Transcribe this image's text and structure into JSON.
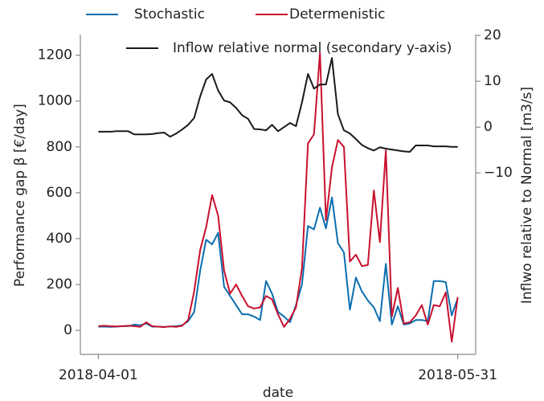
{
  "chart_data": {
    "type": "line",
    "xlabel": "date",
    "ylabel": "Performance gap β [€/day]",
    "y2label": "Inflwo relative to Normal [m3/s]",
    "x": [
      "2018-04-01",
      "2018-04-02",
      "2018-04-03",
      "2018-04-04",
      "2018-04-05",
      "2018-04-06",
      "2018-04-07",
      "2018-04-08",
      "2018-04-09",
      "2018-04-10",
      "2018-04-11",
      "2018-04-12",
      "2018-04-13",
      "2018-04-14",
      "2018-04-15",
      "2018-04-16",
      "2018-04-17",
      "2018-04-18",
      "2018-04-19",
      "2018-04-20",
      "2018-04-21",
      "2018-04-22",
      "2018-04-23",
      "2018-04-24",
      "2018-04-25",
      "2018-04-26",
      "2018-04-27",
      "2018-04-28",
      "2018-04-29",
      "2018-04-30",
      "2018-05-01",
      "2018-05-02",
      "2018-05-03",
      "2018-05-04",
      "2018-05-05",
      "2018-05-06",
      "2018-05-07",
      "2018-05-08",
      "2018-05-09",
      "2018-05-10",
      "2018-05-11",
      "2018-05-12",
      "2018-05-13",
      "2018-05-14",
      "2018-05-15",
      "2018-05-16",
      "2018-05-17",
      "2018-05-18",
      "2018-05-19",
      "2018-05-20",
      "2018-05-21",
      "2018-05-22",
      "2018-05-23",
      "2018-05-24",
      "2018-05-25",
      "2018-05-26",
      "2018-05-27",
      "2018-05-28",
      "2018-05-29",
      "2018-05-30",
      "2018-05-31"
    ],
    "xlim": [
      "2018-03-29",
      "2018-06-03"
    ],
    "xticks": [
      "2018-04-01",
      "2018-05-31"
    ],
    "ylim": [
      -105,
      1290
    ],
    "yticks": [
      0,
      200,
      400,
      600,
      800,
      1000,
      1200
    ],
    "y2lim": [
      -49.6,
      20.2
    ],
    "y2ticks": [
      {
        "value": -10,
        "label": "−10"
      },
      0,
      10,
      20
    ],
    "series": [
      {
        "name": "Stochastic",
        "color": "#0a6eb0",
        "values": [
          16,
          16,
          15,
          16,
          18,
          18,
          25,
          22,
          30,
          16,
          16,
          15,
          17,
          18,
          22,
          40,
          80,
          260,
          395,
          375,
          425,
          190,
          150,
          110,
          70,
          70,
          60,
          45,
          215,
          160,
          80,
          60,
          35,
          110,
          200,
          455,
          440,
          535,
          445,
          580,
          380,
          340,
          90,
          230,
          170,
          130,
          100,
          40,
          290,
          25,
          105,
          25,
          30,
          45,
          45,
          40,
          215,
          215,
          210,
          65,
          140
        ]
      },
      {
        "name": "Determenistic",
        "color": "#c8102e",
        "values": [
          18,
          20,
          18,
          17,
          18,
          20,
          18,
          15,
          35,
          18,
          16,
          14,
          17,
          15,
          20,
          45,
          170,
          350,
          450,
          590,
          500,
          260,
          160,
          200,
          150,
          105,
          95,
          100,
          150,
          135,
          70,
          15,
          50,
          100,
          270,
          815,
          855,
          1210,
          480,
          710,
          830,
          800,
          300,
          330,
          280,
          285,
          610,
          385,
          785,
          60,
          185,
          30,
          35,
          65,
          110,
          25,
          110,
          105,
          165,
          -50,
          145
        ]
      },
      {
        "name": "Inflow relative normal (secondary y-axis)",
        "color": "#1a1a1a",
        "axis": "y2",
        "values": [
          -1.0,
          -1.0,
          -1.0,
          -0.9,
          -0.9,
          -0.9,
          -1.6,
          -1.6,
          -1.6,
          -1.5,
          -1.3,
          -1.2,
          -2.1,
          -1.4,
          -0.5,
          0.5,
          2.0,
          6.7,
          10.4,
          11.6,
          8.0,
          5.8,
          5.4,
          4.2,
          2.6,
          1.8,
          -0.4,
          -0.5,
          -0.7,
          0.5,
          -0.9,
          0.0,
          0.9,
          0.2,
          5.4,
          11.6,
          8.4,
          9.3,
          9.3,
          15.1,
          2.8,
          -0.7,
          -1.4,
          -2.6,
          -3.9,
          -4.6,
          -5.1,
          -4.4,
          -4.7,
          -4.9,
          -5.1,
          -5.3,
          -5.4,
          -4.0,
          -4.0,
          -4.0,
          -4.2,
          -4.2,
          -4.2,
          -4.3,
          -4.3
        ]
      }
    ]
  }
}
